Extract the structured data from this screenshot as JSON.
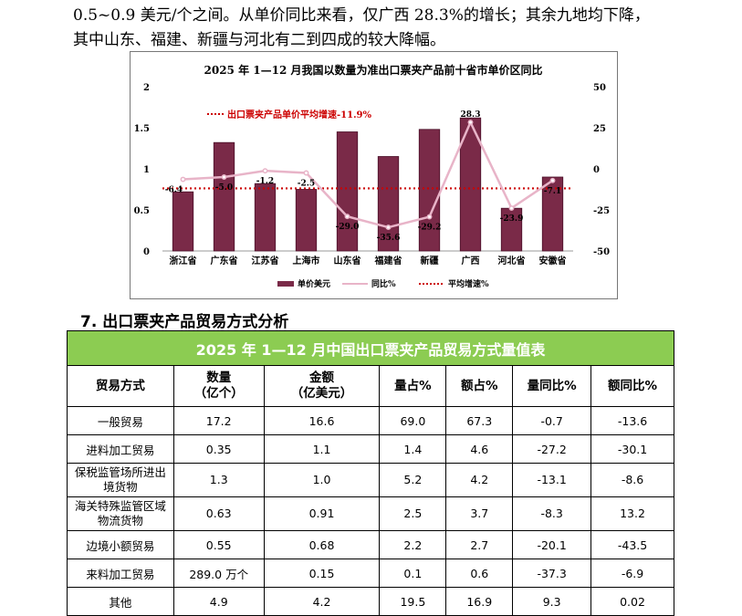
{
  "intro": {
    "line1": "0.5~0.9 美元/个之间。从单价同比来看，仅广西 28.3%的增长；其余九地均下降，",
    "line2": "其中山东、福建、新疆与河北有二到四成的较大降幅。"
  },
  "chart_data": {
    "type": "bar",
    "title": "2025 年 1—12 月我国以数量为准出口票夹产品前十省市单价区同比",
    "categories": [
      "浙江省",
      "广东省",
      "江苏省",
      "上海市",
      "山东省",
      "福建省",
      "新疆",
      "广西",
      "河北省",
      "安徽省"
    ],
    "series": [
      {
        "name": "单价美元",
        "type": "bar",
        "axis": "left",
        "values": [
          0.72,
          1.32,
          0.82,
          0.75,
          1.45,
          1.15,
          1.48,
          1.62,
          0.52,
          0.9
        ]
      },
      {
        "name": "同比%",
        "type": "line",
        "axis": "right",
        "values": [
          -6.4,
          -5.0,
          -1.2,
          -2.5,
          -29.0,
          -35.6,
          -29.2,
          28.3,
          -23.9,
          -7.1
        ]
      },
      {
        "name": "平均增速%",
        "type": "line",
        "axis": "right",
        "values": [
          -11.9,
          -11.9,
          -11.9,
          -11.9,
          -11.9,
          -11.9,
          -11.9,
          -11.9,
          -11.9,
          -11.9
        ]
      }
    ],
    "data_labels": [
      "-6.4",
      "-5.0",
      "-1.2",
      "-2.5",
      "-29.0",
      "-35.6",
      "-29.2",
      "28.3",
      "-23.9",
      "-7.1"
    ],
    "annotation": "出口票夹产品单价平均增速-11.9%",
    "y_left": {
      "ticks": [
        "0",
        "0.5",
        "1",
        "1.5",
        "2"
      ],
      "range": [
        0,
        2
      ]
    },
    "y_right": {
      "ticks": [
        "-50",
        "-25",
        "0",
        "25",
        "50"
      ],
      "range": [
        -50,
        50
      ]
    },
    "legend": [
      "单价美元",
      "同比%",
      "平均增速%"
    ],
    "legend_position": "bottom",
    "colors": {
      "bar": "#7a2a48",
      "line": "#e8b4c8",
      "avg": "#cc0000"
    }
  },
  "section": {
    "title": "7. 出口票夹产品贸易方式分析"
  },
  "table": {
    "caption": "2025 年 1—12 月中国出口票夹产品贸易方式量值表",
    "headers": [
      {
        "l1": "贸易方式",
        "l2": ""
      },
      {
        "l1": "数量",
        "l2": "（亿个）"
      },
      {
        "l1": "金额",
        "l2": "（亿美元）"
      },
      {
        "l1": "量占%",
        "l2": ""
      },
      {
        "l1": "额占%",
        "l2": ""
      },
      {
        "l1": "量同比%",
        "l2": ""
      },
      {
        "l1": "额同比%",
        "l2": ""
      }
    ],
    "rows": [
      {
        "cells": [
          "一般贸易",
          "17.2",
          "16.6",
          "69.0",
          "67.3",
          "-0.7",
          "-13.6"
        ]
      },
      {
        "cells": [
          "进料加工贸易",
          "0.35",
          "1.1",
          "1.4",
          "4.6",
          "-27.2",
          "-30.1"
        ]
      },
      {
        "cells": [
          "保税监管场所进出境货物",
          "1.3",
          "1.0",
          "5.2",
          "4.2",
          "-13.1",
          "-8.6"
        ]
      },
      {
        "cells": [
          "海关特殊监管区域物流货物",
          "0.63",
          "0.91",
          "2.5",
          "3.7",
          "-8.3",
          "13.2"
        ]
      },
      {
        "cells": [
          "边境小额贸易",
          "0.55",
          "0.68",
          "2.2",
          "2.7",
          "-20.1",
          "-43.5"
        ]
      },
      {
        "cells": [
          "来料加工贸易",
          "289.0 万个",
          "0.15",
          "0.1",
          "0.6",
          "-37.3",
          "-6.9"
        ]
      },
      {
        "cells": [
          "其他",
          "4.9",
          "4.2",
          "19.5",
          "16.9",
          "9.3",
          "0.02"
        ]
      }
    ]
  }
}
